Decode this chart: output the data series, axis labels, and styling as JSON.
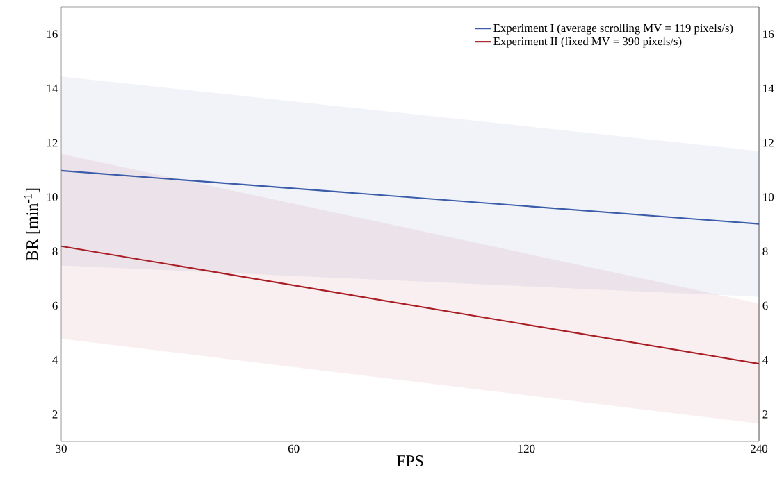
{
  "chart_data": {
    "type": "line",
    "xlabel": "FPS",
    "ylabel": "BR [min$^{-1}$]",
    "log": "x",
    "x": [
      30,
      240
    ],
    "xlim": [
      30,
      240
    ],
    "xticks": [
      30,
      60,
      120,
      240
    ],
    "ylim": [
      1,
      17
    ],
    "yticks": [
      2,
      4,
      6,
      8,
      10,
      12,
      14,
      16
    ],
    "y2lim": [
      1,
      17
    ],
    "y2ticks": [
      2,
      4,
      6,
      8,
      10,
      12,
      14,
      16
    ],
    "grid": false,
    "legend": "top right",
    "series": [
      {
        "name": "Experiment I (average scrolling MV = 119 pixels/s)",
        "color": "#3a5ca9",
        "values": [
          10.97,
          9.01
        ],
        "lower": [
          7.48,
          6.33
        ],
        "upper": [
          14.44,
          11.69
        ]
      },
      {
        "name": "Experiment II (fixed MV = 390 pixels/s)",
        "color": "#a91d25",
        "values": [
          8.19,
          3.86
        ],
        "lower": [
          4.78,
          1.66
        ],
        "upper": [
          11.59,
          6.08
        ]
      }
    ]
  }
}
